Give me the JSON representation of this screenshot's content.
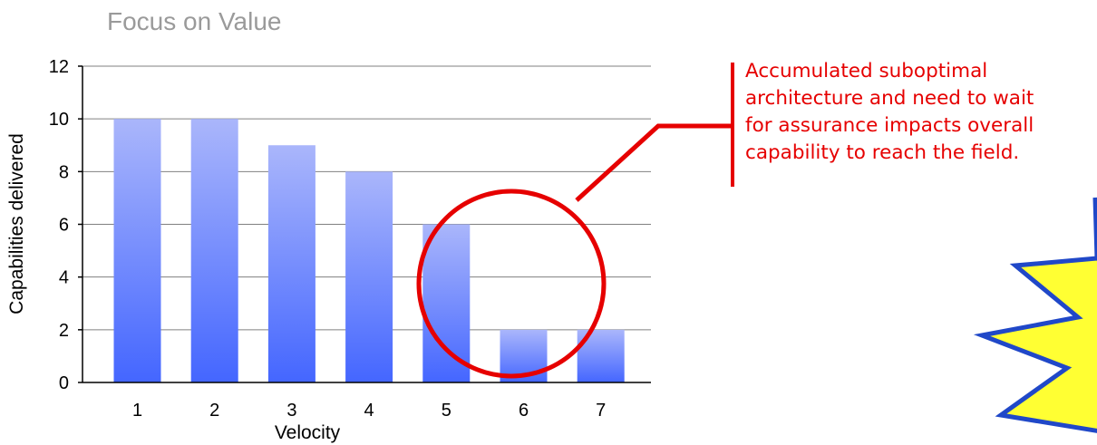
{
  "chart_data": {
    "type": "bar",
    "title": "Focus on Value",
    "xlabel": "Velocity",
    "ylabel": "Capabilities delivered",
    "categories": [
      "1",
      "2",
      "3",
      "4",
      "5",
      "6",
      "7"
    ],
    "values": [
      10,
      10,
      9,
      8,
      6,
      2,
      2
    ],
    "ylim": [
      0,
      12
    ],
    "yticks": [
      "0",
      "2",
      "4",
      "6",
      "8",
      "10",
      "12"
    ],
    "grid": true,
    "legend": "none"
  },
  "callout": {
    "lines": [
      "Accumulated suboptimal",
      "architecture and need to wait",
      "for assurance impacts overall",
      "capability to reach the field."
    ]
  },
  "colors": {
    "bar_top": "#aab6fb",
    "bar_bottom": "#4466ff",
    "callout": "#e60000",
    "burst_fill": "#ffff33",
    "burst_stroke": "#2048c8",
    "title": "#9a9a9a"
  }
}
